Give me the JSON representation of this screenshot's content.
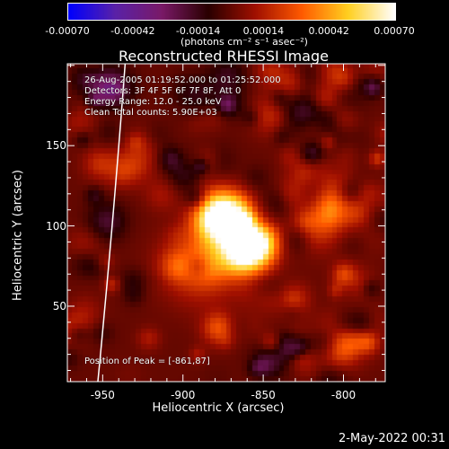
{
  "chart_data": {
    "type": "heatmap",
    "title": "Reconstructed RHESSI Image",
    "xlabel": "Heliocentric X (arcsec)",
    "ylabel": "Heliocentric Y (arcsec)",
    "xlim": [
      -972,
      -774
    ],
    "ylim": [
      3,
      201
    ],
    "x_ticks": [
      "-950",
      "-900",
      "-850",
      "-800"
    ],
    "x_tick_values": [
      -950,
      -900,
      -850,
      -800
    ],
    "y_ticks": [
      "50",
      "100",
      "150"
    ],
    "y_tick_values": [
      50,
      100,
      150
    ],
    "colorbar": {
      "ticks": [
        "-0.00070",
        "-0.00042",
        "-0.00014",
        "0.00014",
        "0.00042",
        "0.00070"
      ],
      "range": [
        -0.0007,
        0.0007
      ],
      "units": "(photons cm⁻² s⁻¹ asec⁻²)",
      "colormap": [
        "#0000ff",
        "#5a22a8",
        "#7a1a68",
        "#2a0000",
        "#a01000",
        "#ff5a00",
        "#ffd020",
        "#ffffff"
      ]
    },
    "annotations": {
      "time_range": "26-Aug-2005 01:19:52.000 to 01:25:52.000",
      "detectors": "Detectors: 3F 4F 5F 6F 7F 8F, Att 0",
      "energy_range": "Energy Range: 12.0 - 25.0 keV",
      "clean": "Clean     Total counts: 5.90E+03",
      "peak": "Position of Peak = [-861,87]"
    },
    "peak": {
      "x": -861,
      "y": 87
    },
    "limb_arc": {
      "x_top": -936,
      "x_bottom": -953
    }
  },
  "footer": {
    "date": "2-May-2022 00:31"
  }
}
